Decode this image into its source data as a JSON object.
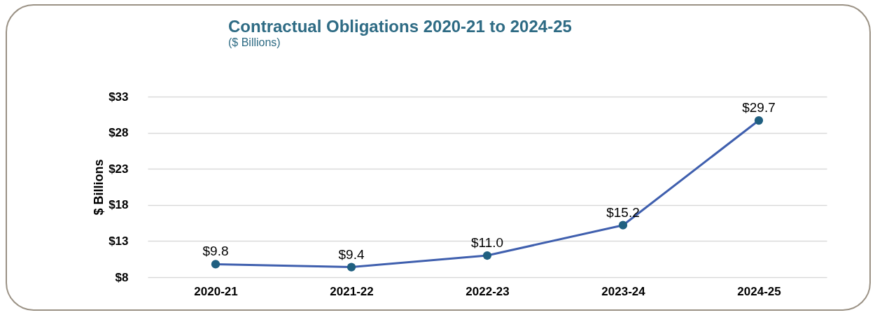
{
  "chart_data": {
    "type": "line",
    "title": "Contractual Obligations 2020-21 to 2024-25",
    "subtitle": "($ Billions)",
    "ylabel": "$ Billions",
    "categories": [
      "2020-21",
      "2021-22",
      "2022-23",
      "2023-24",
      "2024-25"
    ],
    "series": [
      {
        "color": "#3f5fae",
        "values": [
          9.8,
          9.4,
          11.0,
          15.2,
          29.7
        ],
        "value_labels": [
          "$9.8",
          "$9.4",
          "$11.0",
          "$15.2",
          "$29.7"
        ]
      }
    ],
    "ylim": [
      8,
      33
    ],
    "yticks": [
      {
        "value": 8,
        "label": "$8"
      },
      {
        "value": 13,
        "label": "$13"
      },
      {
        "value": 18,
        "label": "$18"
      },
      {
        "value": 23,
        "label": "$23"
      },
      {
        "value": 28,
        "label": "$28"
      },
      {
        "value": 33,
        "label": "$33"
      }
    ],
    "grid": "y",
    "marker": "circle",
    "line_style": "solid"
  }
}
